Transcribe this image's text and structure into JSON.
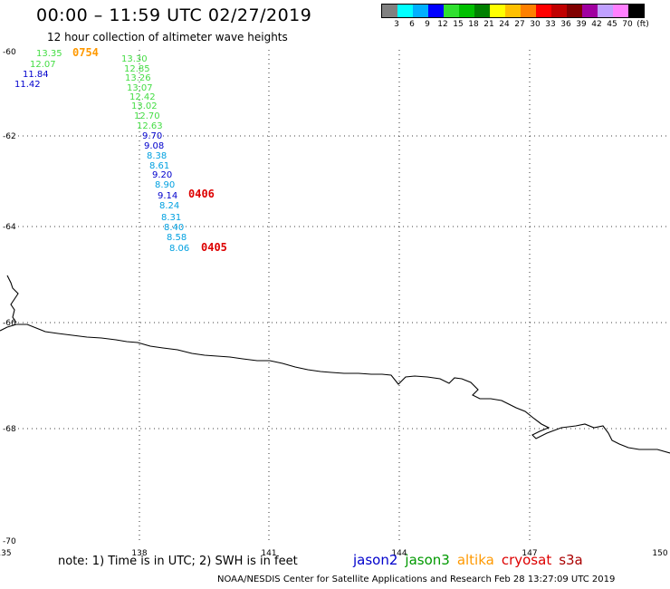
{
  "title": "00:00 – 11:59 UTC 02/27/2019",
  "subtitle": "12 hour collection of altimeter wave heights",
  "scale": {
    "colors": [
      "#808080",
      "#00ffff",
      "#00b0ff",
      "#0000ff",
      "#30e030",
      "#00c000",
      "#008000",
      "#ffff00",
      "#ffc000",
      "#ff8000",
      "#ff0000",
      "#c00000",
      "#800000",
      "#a000a0",
      "#c0a0ff",
      "#ff80ff",
      "#000000"
    ],
    "labels": [
      "3",
      "6",
      "9",
      "12",
      "15",
      "18",
      "21",
      "24",
      "27",
      "30",
      "33",
      "36",
      "39",
      "42",
      "45",
      "70",
      "(ft)"
    ]
  },
  "axes": {
    "lon_labels": [
      "135",
      "138",
      "141",
      "144",
      "147",
      "150"
    ],
    "lat_labels": [
      "-60",
      "-62",
      "-64",
      "-66",
      "-68",
      "-70"
    ]
  },
  "tracks": [
    {
      "color": "#44dd44",
      "values": [
        "13.35",
        "12.07"
      ]
    },
    {
      "color": "#0000cc",
      "values": [
        "11.84",
        "11.42"
      ]
    },
    {
      "color": "#44dd44",
      "values": [
        "13.30",
        "12.85",
        "13.26",
        "13.07",
        "12.42",
        "13.02",
        "12.70",
        "12.63"
      ]
    },
    {
      "color": "#0000cc",
      "values": [
        "9.70",
        "9.08"
      ]
    },
    {
      "color": "#00a0e0",
      "values": [
        "8.38",
        "8.61"
      ]
    },
    {
      "color": "#0000cc",
      "values": [
        "9.20"
      ]
    },
    {
      "color": "#00a0e0",
      "values": [
        "8.90"
      ]
    },
    {
      "color": "#0000cc",
      "values": [
        "9.14"
      ]
    },
    {
      "color": "#00a0e0",
      "values": [
        "8.24",
        "8.31",
        "8.40",
        "8.58",
        "8.06"
      ]
    }
  ],
  "pass_times": [
    {
      "time": "0754",
      "color": "#ff9900"
    },
    {
      "time": "0406",
      "color": "#dd0000"
    },
    {
      "time": "0405",
      "color": "#dd0000"
    }
  ],
  "note": "note: 1) Time is in UTC; 2) SWH is in feet",
  "satellites": [
    {
      "name": "jason2",
      "color": "#0000cc"
    },
    {
      "name": "jason3",
      "color": "#009900"
    },
    {
      "name": "altika",
      "color": "#ff9900"
    },
    {
      "name": "cryosat",
      "color": "#dd0000"
    },
    {
      "name": "s3a",
      "color": "#aa0000"
    }
  ],
  "credit": "NOAA/NESDIS Center for Satellite Applications and Research   Feb 28 13:27:09 UTC 2019"
}
